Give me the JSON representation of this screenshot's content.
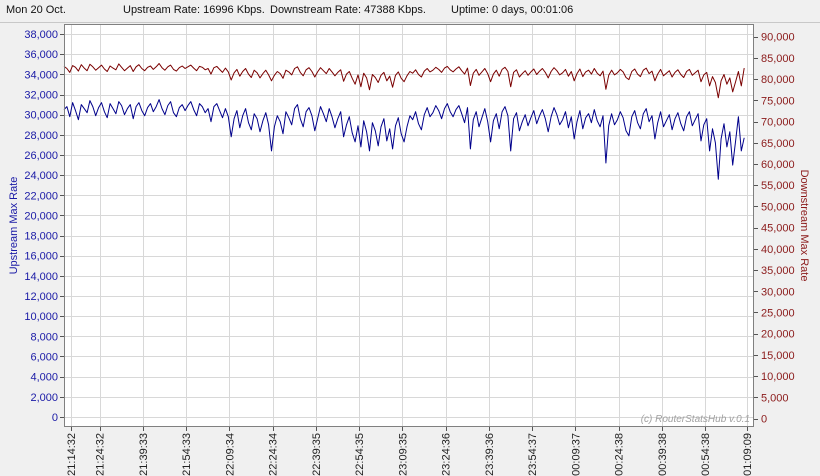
{
  "header": {
    "date": "Mon 20 Oct.",
    "upstream_rate": "Upstream Rate: 16996 Kbps.",
    "downstream_rate": "Downstream Rate: 47388 Kbps.",
    "uptime": "Uptime: 0 days, 00:01:06"
  },
  "colors": {
    "upstream": "#00008b",
    "downstream": "#7a0000",
    "grid": "#d8d8d8",
    "plot_bg": "#ffffff"
  },
  "watermark": "(c) RouterStatsHub v.0.1",
  "chart_data": {
    "type": "line",
    "xlabel": "",
    "x_tick_labels": [
      "21:14:32",
      "21:24:32",
      "21:39:33",
      "21:54:33",
      "22:09:34",
      "22:24:34",
      "22:39:35",
      "22:54:35",
      "23:09:35",
      "23:24:36",
      "23:39:36",
      "23:54:37",
      "00:09:37",
      "00:24:38",
      "00:39:38",
      "00:54:38",
      "01:09:09"
    ],
    "x_tick_positions": [
      0,
      10,
      25,
      40,
      55,
      70,
      85,
      100,
      115,
      130,
      145,
      160,
      175,
      190,
      205,
      220,
      234.6
    ],
    "x_range": [
      -2.4,
      237
    ],
    "grid": true,
    "left_axis": {
      "label": "Upstream Max Rate",
      "ylim": [
        -1000,
        39000
      ],
      "ticks": [
        0,
        2000,
        4000,
        6000,
        8000,
        10000,
        12000,
        14000,
        16000,
        18000,
        20000,
        22000,
        24000,
        26000,
        28000,
        30000,
        32000,
        34000,
        36000,
        38000
      ],
      "tick_labels": [
        "0",
        "2,000",
        "4,000",
        "6,000",
        "8,000",
        "10,000",
        "12,000",
        "14,000",
        "16,000",
        "18,000",
        "20,000",
        "22,000",
        "24,000",
        "26,000",
        "28,000",
        "30,000",
        "32,000",
        "34,000",
        "36,000",
        "38,000"
      ]
    },
    "right_axis": {
      "label": "Downstream Max Rate",
      "ylim": [
        -2000,
        93000
      ],
      "ticks": [
        0,
        5000,
        10000,
        15000,
        20000,
        25000,
        30000,
        35000,
        40000,
        45000,
        50000,
        55000,
        60000,
        65000,
        70000,
        75000,
        80000,
        85000,
        90000
      ],
      "tick_labels": [
        "0",
        "5,000",
        "10,000",
        "15,000",
        "20,000",
        "25,000",
        "30,000",
        "35,000",
        "40,000",
        "45,000",
        "50,000",
        "55,000",
        "60,000",
        "65,000",
        "70,000",
        "75,000",
        "80,000",
        "85,000",
        "90,000"
      ]
    },
    "series": [
      {
        "name": "Upstream Max Rate",
        "axis": "left",
        "x_start": -2.4,
        "x_step": 1,
        "values": [
          30500,
          30800,
          29800,
          31200,
          30400,
          29500,
          31000,
          30600,
          30200,
          31400,
          30800,
          29900,
          30700,
          31200,
          30300,
          29700,
          31100,
          30600,
          30100,
          31300,
          30900,
          30000,
          30600,
          31000,
          29600,
          30800,
          31200,
          30400,
          29900,
          30700,
          31100,
          30300,
          30800,
          31500,
          30600,
          30000,
          30900,
          31300,
          30200,
          29800,
          30700,
          31000,
          30400,
          30900,
          31300,
          30500,
          29900,
          31100,
          30800,
          30200,
          30600,
          29300,
          30800,
          31100,
          30400,
          29700,
          30600,
          29800,
          27800,
          29600,
          30400,
          28700,
          29900,
          30600,
          29200,
          28500,
          30100,
          29600,
          28300,
          29400,
          30200,
          29000,
          26400,
          28800,
          29900,
          29300,
          28100,
          30300,
          29700,
          29000,
          30600,
          31000,
          29600,
          28800,
          30300,
          30700,
          29900,
          28400,
          29600,
          30800,
          30100,
          29300,
          30600,
          29800,
          28700,
          29600,
          30300,
          27800,
          29000,
          29800,
          28200,
          27300,
          28900,
          26800,
          29400,
          28300,
          26400,
          29200,
          28400,
          26900,
          28800,
          29600,
          27400,
          28600,
          26600,
          28900,
          29700,
          28100,
          27300,
          28800,
          29900,
          29500,
          30300,
          29100,
          28500,
          30000,
          30700,
          29800,
          30200,
          30900,
          30400,
          29600,
          30600,
          31100,
          30300,
          29800,
          30500,
          30900,
          30100,
          29200,
          30700,
          26600,
          29500,
          30300,
          28800,
          29700,
          30600,
          29300,
          27300,
          29400,
          30100,
          28600,
          30300,
          30800,
          29900,
          26400,
          29600,
          30200,
          28400,
          29300,
          30000,
          28900,
          29700,
          30400,
          29100,
          29900,
          30500,
          29600,
          28300,
          29800,
          30700,
          30000,
          29000,
          29500,
          30300,
          28700,
          29800,
          27600,
          29300,
          30400,
          28600,
          29700,
          30100,
          29200,
          30500,
          29400,
          28800,
          29900,
          25200,
          28900,
          30100,
          29000,
          29500,
          30300,
          29700,
          28400,
          27900,
          29800,
          30400,
          29200,
          28600,
          30100,
          30600,
          29300,
          29900,
          27600,
          29200,
          30300,
          28800,
          29400,
          30000,
          28500,
          29600,
          30200,
          29100,
          28400,
          29800,
          30300,
          28900,
          29500,
          30100,
          27400,
          29000,
          29600,
          26400,
          28600,
          27200,
          23600,
          27600,
          29100,
          26800,
          28300,
          25000,
          27400,
          29800,
          26400,
          27700
        ]
      },
      {
        "name": "Downstream Max Rate",
        "axis": "right",
        "x_start": -2.4,
        "x_step": 1,
        "values": [
          83000,
          82500,
          81600,
          83200,
          82800,
          81900,
          83400,
          82600,
          82000,
          83500,
          82900,
          82100,
          82700,
          83300,
          82400,
          81800,
          83100,
          82600,
          82200,
          83600,
          82800,
          82000,
          82600,
          83200,
          81800,
          82900,
          83400,
          82500,
          82000,
          82800,
          83100,
          82300,
          82900,
          83700,
          82700,
          82100,
          82900,
          83300,
          82300,
          81900,
          82700,
          83100,
          82500,
          82900,
          83300,
          82600,
          82000,
          83000,
          82800,
          82200,
          82500,
          81200,
          82700,
          83000,
          82300,
          81600,
          82600,
          81700,
          79800,
          81500,
          82300,
          80700,
          81800,
          82500,
          81200,
          80400,
          82100,
          81500,
          80300,
          81300,
          82100,
          81000,
          79600,
          80900,
          81800,
          81300,
          80200,
          82100,
          81700,
          81000,
          82500,
          82900,
          81600,
          80800,
          82200,
          82700,
          81800,
          80500,
          81700,
          82700,
          82000,
          81300,
          82500,
          81700,
          80800,
          81600,
          82200,
          79500,
          81200,
          81800,
          80200,
          78800,
          81000,
          78200,
          81400,
          80300,
          77500,
          81100,
          80400,
          79200,
          80900,
          81600,
          79600,
          80700,
          78100,
          80900,
          81700,
          80200,
          79400,
          80800,
          81800,
          81400,
          82200,
          81100,
          80500,
          81900,
          82500,
          81700,
          82100,
          82800,
          82300,
          81600,
          82600,
          83000,
          82200,
          81700,
          82400,
          82900,
          82000,
          81200,
          82600,
          78500,
          81400,
          82300,
          80900,
          81700,
          82500,
          81300,
          79400,
          81200,
          82100,
          80700,
          82300,
          82800,
          81800,
          78200,
          81600,
          82200,
          80500,
          81300,
          82000,
          80900,
          81700,
          82400,
          81100,
          81900,
          82500,
          81600,
          80300,
          81800,
          82700,
          82000,
          81000,
          81500,
          82300,
          80700,
          81800,
          79600,
          81300,
          82400,
          80600,
          81700,
          82100,
          81200,
          82500,
          81400,
          80800,
          81900,
          77600,
          80900,
          82100,
          81000,
          81500,
          82300,
          81700,
          80400,
          79900,
          81800,
          82400,
          81200,
          80600,
          82100,
          82600,
          81300,
          81900,
          79600,
          81200,
          82300,
          80800,
          81400,
          82000,
          80500,
          81600,
          82200,
          81100,
          80400,
          81800,
          82300,
          80900,
          81500,
          82100,
          79400,
          81000,
          81600,
          78400,
          80600,
          79200,
          75600,
          79600,
          81100,
          78800,
          80300,
          77000,
          79400,
          81800,
          78400,
          82600
        ]
      }
    ]
  }
}
